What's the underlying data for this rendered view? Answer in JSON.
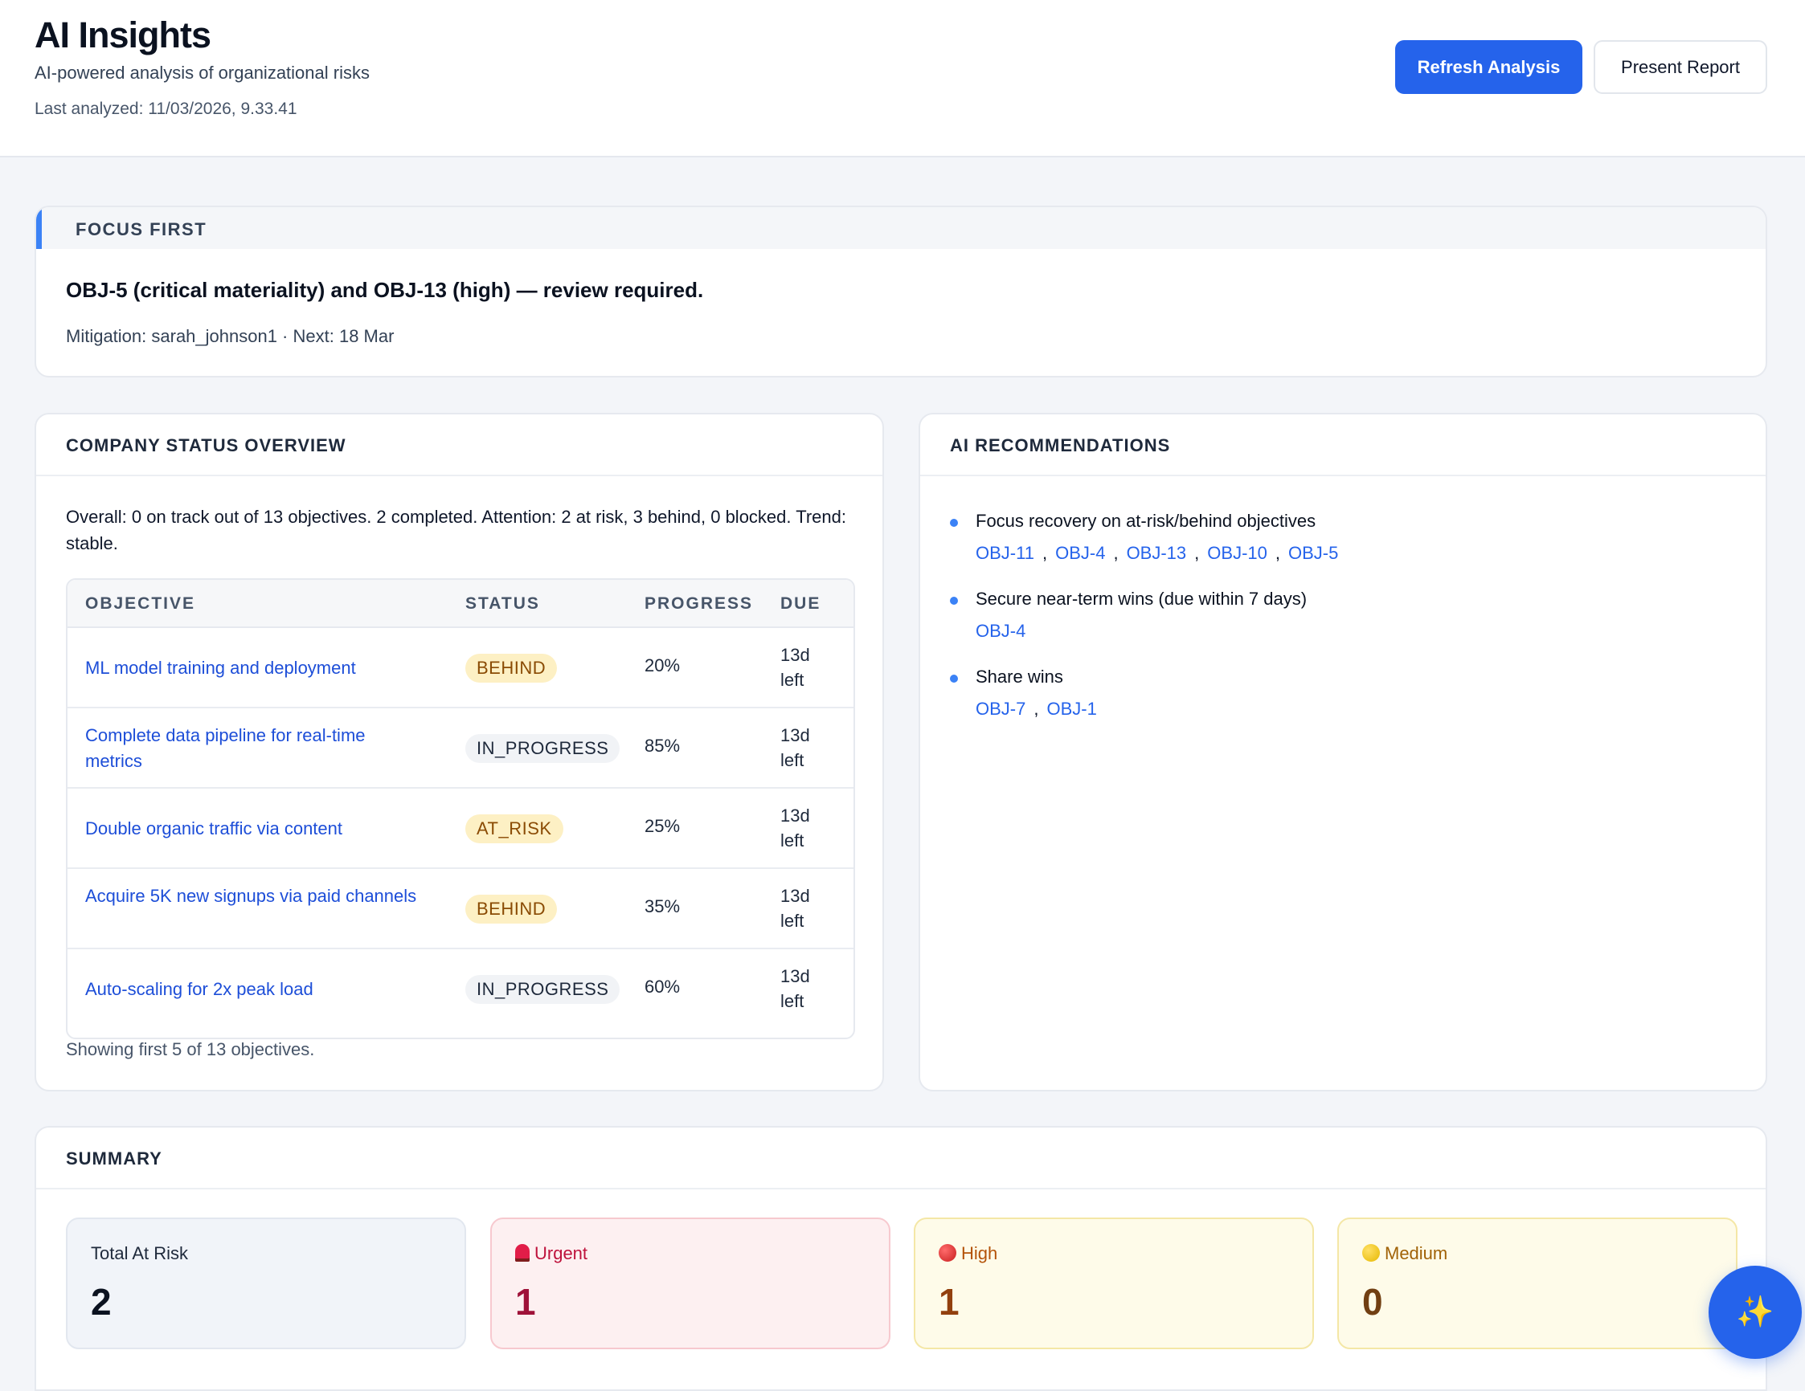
{
  "header": {
    "title": "AI Insights",
    "subtitle": "AI-powered analysis of organizational risks",
    "last_analyzed": "Last analyzed: 11/03/2026, 9.33.41",
    "refresh_label": "Refresh Analysis",
    "present_label": "Present Report",
    "accent_color": "#2563eb"
  },
  "focus": {
    "heading": "FOCUS FIRST",
    "main": "OBJ-5 (critical materiality) and OBJ-13 (high) — review required.",
    "sub": "Mitigation: sarah_johnson1 · Next: 18 Mar"
  },
  "status_overview": {
    "heading": "COMPANY STATUS OVERVIEW",
    "summary": "Overall: 0 on track out of 13 objectives. 2 completed. Attention: 2 at risk, 3 behind, 0 blocked. Trend: stable.",
    "columns": [
      "OBJECTIVE",
      "STATUS",
      "PROGRESS",
      "DUE"
    ],
    "rows": [
      {
        "objective": "ML model training and deployment",
        "status": "BEHIND",
        "progress": "20%",
        "due": "13d left"
      },
      {
        "objective": "Complete data pipeline for real-time metrics",
        "status": "IN_PROGRESS",
        "progress": "85%",
        "due": "13d left"
      },
      {
        "objective": "Double organic traffic via content",
        "status": "AT_RISK",
        "progress": "25%",
        "due": "13d left"
      },
      {
        "objective": "Acquire 5K new signups via paid channels",
        "status": "BEHIND",
        "progress": "35%",
        "due": "13d left"
      },
      {
        "objective": "Auto-scaling for 2x peak load",
        "status": "IN_PROGRESS",
        "progress": "60%",
        "due": "13d left"
      }
    ],
    "footer": "Showing first 5 of 13 objectives."
  },
  "recommendations": {
    "heading": "AI RECOMMENDATIONS",
    "items": [
      {
        "title": "Focus recovery on at-risk/behind objectives",
        "links": [
          "OBJ-11",
          "OBJ-4",
          "OBJ-13",
          "OBJ-10",
          "OBJ-5"
        ]
      },
      {
        "title": "Secure near-term wins (due within 7 days)",
        "links": [
          "OBJ-4"
        ]
      },
      {
        "title": "Share wins",
        "links": [
          "OBJ-7",
          "OBJ-1"
        ]
      }
    ]
  },
  "summary": {
    "heading": "SUMMARY",
    "stats": [
      {
        "label": "Total At Risk",
        "value": "2",
        "icon": ""
      },
      {
        "label": "Urgent",
        "value": "1",
        "icon": "siren-icon"
      },
      {
        "label": "High",
        "value": "1",
        "icon": "red-circle-icon"
      },
      {
        "label": "Medium",
        "value": "0",
        "icon": "yellow-circle-icon"
      }
    ]
  },
  "fab": {
    "icon": "sparkles-icon",
    "glyph": "✨"
  }
}
